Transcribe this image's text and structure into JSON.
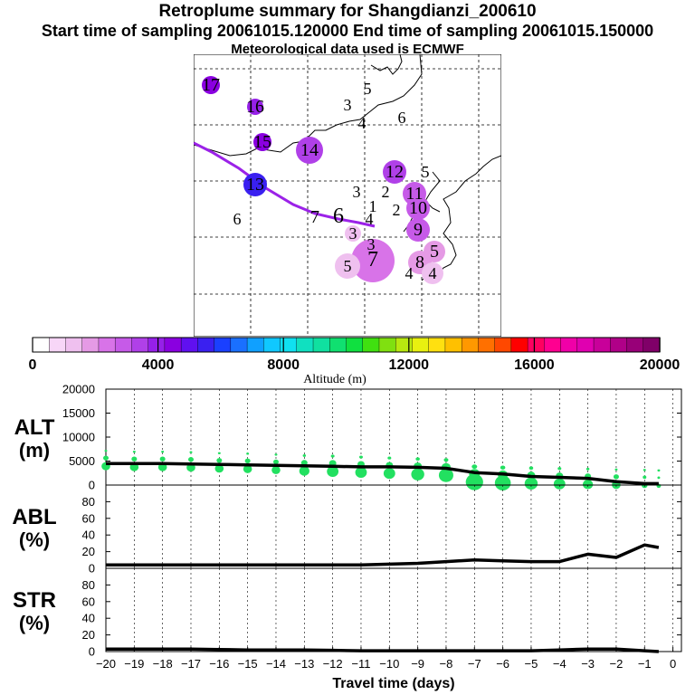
{
  "title": {
    "line1": "Retroplume summary for Shangdianzi_200610",
    "line2": "Start time of sampling 20061015.120000     End time of sampling 20061015.150000",
    "line3": "Meteorological data used is ECMWF"
  },
  "colors": {
    "track": "#9b22e8",
    "alt_markers": "#22e060",
    "palette": [
      "#ffffff",
      "#f7d6f7",
      "#efc0ef",
      "#e59ae5",
      "#d873e8",
      "#c65ae8",
      "#b040e8",
      "#9620e8",
      "#8a00e0",
      "#6010f0",
      "#3a20f0",
      "#1a40ff",
      "#1a70ff",
      "#10a0ff",
      "#10c8ff",
      "#10e0f0",
      "#10e0c0",
      "#10e0a0",
      "#10e070",
      "#10e040",
      "#40e010",
      "#80e010",
      "#b8e810",
      "#e8f010",
      "#ffe010",
      "#ffc000",
      "#ff9800",
      "#ff7000",
      "#ff4800",
      "#ff0000",
      "#ff0060",
      "#ff0090",
      "#f000a8",
      "#e000b0",
      "#c8009a",
      "#b00088",
      "#980078",
      "#800068"
    ]
  },
  "map": {
    "plume_points": [
      {
        "label": "17",
        "color": "#8a00e0",
        "size": 10
      },
      {
        "label": "16",
        "color": "#9620e8",
        "size": 9
      },
      {
        "label": "15",
        "color": "#8a00e0",
        "size": 10
      },
      {
        "label": "14",
        "color": "#b040e8",
        "size": 15
      },
      {
        "label": "13",
        "color": "#3a20f0",
        "size": 13
      },
      {
        "label": "12",
        "color": "#b040e8",
        "size": 13
      },
      {
        "label": "11",
        "color": "#c65ae8",
        "size": 13
      },
      {
        "label": "10",
        "color": "#c65ae8",
        "size": 13
      },
      {
        "label": "9",
        "color": "#c65ae8",
        "size": 13
      },
      {
        "label": "8",
        "color": "#e59ae5",
        "size": 13
      },
      {
        "label": "7",
        "color": "#d873e8",
        "size": 24
      },
      {
        "label": "7",
        "color": "#ffffff",
        "size": 0
      },
      {
        "label": "6",
        "color": "#ffffff",
        "size": 0
      },
      {
        "label": "6",
        "color": "#ffffff",
        "size": 0
      },
      {
        "label": "6",
        "color": "#ffffff",
        "size": 0
      },
      {
        "label": "5",
        "color": "#efc0ef",
        "size": 14
      },
      {
        "label": "5",
        "color": "#e59ae5",
        "size": 12
      },
      {
        "label": "5",
        "color": "#ffffff",
        "size": 0
      },
      {
        "label": "5",
        "color": "#ffffff",
        "size": 0
      },
      {
        "label": "4",
        "color": "#efc0ef",
        "size": 12
      },
      {
        "label": "4",
        "color": "#ffffff",
        "size": 0
      },
      {
        "label": "4",
        "color": "#ffffff",
        "size": 0
      },
      {
        "label": "4",
        "color": "#ffffff",
        "size": 0
      },
      {
        "label": "3",
        "color": "#ffffff",
        "size": 0
      },
      {
        "label": "3",
        "color": "#ffffff",
        "size": 0
      },
      {
        "label": "3",
        "color": "#efc0ef",
        "size": 9
      },
      {
        "label": "3",
        "color": "#ffffff",
        "size": 0
      },
      {
        "label": "2",
        "color": "#ffffff",
        "size": 0
      },
      {
        "label": "2",
        "color": "#ffffff",
        "size": 0
      },
      {
        "label": "1",
        "color": "#ffffff",
        "size": 0
      }
    ]
  },
  "colorbar": {
    "ticks": [
      0,
      4000,
      8000,
      12000,
      16000,
      20000
    ],
    "label": "Altitude  (m)"
  },
  "chart_data": [
    {
      "type": "line",
      "name": "ALT",
      "ylabel": "ALT",
      "yunit": "(m)",
      "ylim": [
        0,
        20000
      ],
      "yticks": [
        0,
        5000,
        10000,
        15000,
        20000
      ],
      "x": [
        -20,
        -19,
        -18,
        -17,
        -16,
        -15,
        -14,
        -13,
        -12,
        -11,
        -10,
        -9,
        -8,
        -7,
        -6,
        -5,
        -4,
        -3,
        -2,
        -1,
        -0.5
      ],
      "values": [
        4500,
        4500,
        4500,
        4400,
        4300,
        4200,
        4100,
        4000,
        3900,
        3800,
        3800,
        3700,
        3500,
        2600,
        2300,
        1800,
        1600,
        1400,
        700,
        300,
        300
      ],
      "scatter": {
        "x": [
          -20,
          -19,
          -18,
          -17,
          -16,
          -15,
          -14,
          -13,
          -12,
          -11,
          -10,
          -9,
          -8,
          -7,
          -6,
          -5,
          -4,
          -3,
          -2,
          -1,
          -0.5
        ],
        "values": [
          4500,
          4300,
          4300,
          4200,
          4000,
          3900,
          3700,
          3500,
          3400,
          3200,
          3000,
          2800,
          2600,
          1200,
          1000,
          900,
          800,
          700,
          600,
          500,
          400
        ],
        "sizes": [
          6,
          6,
          6,
          6,
          6,
          6,
          6,
          7,
          8,
          8,
          8,
          9,
          10,
          12,
          11,
          9,
          8,
          7,
          6,
          4,
          3
        ]
      }
    },
    {
      "type": "line",
      "name": "ABL",
      "ylabel": "ABL",
      "yunit": "(%)",
      "ylim": [
        0,
        100
      ],
      "yticks": [
        0,
        20,
        40,
        60,
        80
      ],
      "x": [
        -20,
        -19,
        -18,
        -17,
        -16,
        -15,
        -14,
        -13,
        -12,
        -11,
        -10,
        -9,
        -8,
        -7,
        -6,
        -5,
        -4,
        -3,
        -2,
        -1,
        -0.5
      ],
      "values": [
        4,
        4,
        4,
        4,
        4,
        4,
        4,
        4,
        4,
        4,
        5,
        6,
        8,
        10,
        9,
        8,
        8,
        17,
        13,
        28,
        25
      ]
    },
    {
      "type": "line",
      "name": "STR",
      "ylabel": "STR",
      "yunit": "(%)",
      "ylim": [
        0,
        100
      ],
      "yticks": [
        0,
        20,
        40,
        60,
        80
      ],
      "xlabel": "Travel time (days)",
      "xticks": [
        -20,
        -19,
        -18,
        -17,
        -16,
        -15,
        -14,
        -13,
        -12,
        -11,
        -10,
        -9,
        -8,
        -7,
        -6,
        -5,
        -4,
        -3,
        -2,
        -1,
        0
      ],
      "x": [
        -20,
        -19,
        -18,
        -17,
        -16,
        -15,
        -14,
        -13,
        -12,
        -11,
        -10,
        -9,
        -8,
        -7,
        -6,
        -5,
        -4,
        -3,
        -2,
        -1,
        -0.5
      ],
      "values": [
        3,
        3,
        3,
        3,
        2.5,
        2,
        2,
        2,
        1.5,
        1,
        1,
        1,
        1,
        1,
        1,
        1,
        2,
        3,
        3,
        1,
        0
      ]
    }
  ]
}
